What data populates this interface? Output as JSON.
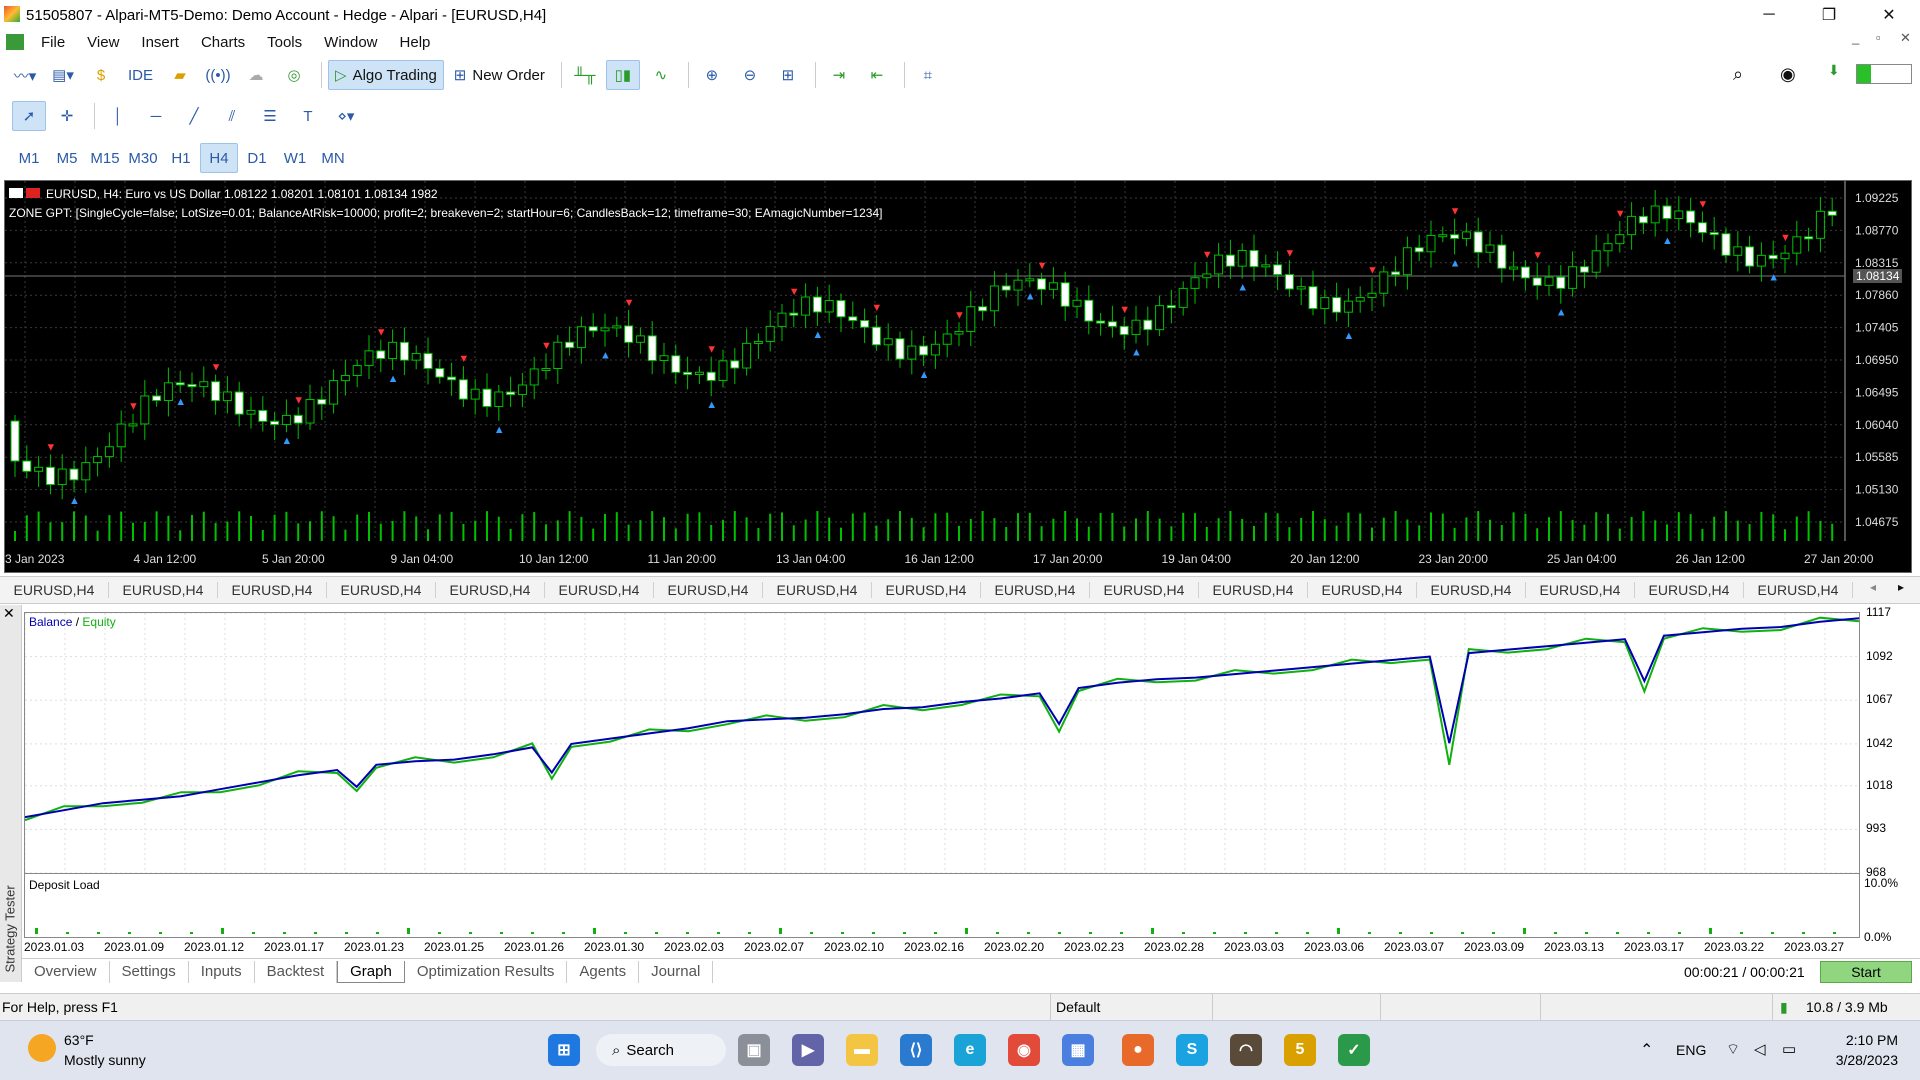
{
  "window": {
    "title": "51505807 - Alpari-MT5-Demo: Demo Account - Hedge - Alpari - [EURUSD,H4]",
    "minimize": "─",
    "restore": "❐",
    "close": "✕"
  },
  "menu": [
    "File",
    "View",
    "Insert",
    "Charts",
    "Tools",
    "Window",
    "Help"
  ],
  "toolbar": {
    "ide": "IDE",
    "algo_trading": "Algo Trading",
    "new_order": "New Order"
  },
  "timeframes": [
    "M1",
    "M5",
    "M15",
    "M30",
    "H1",
    "H4",
    "D1",
    "W1",
    "MN"
  ],
  "active_timeframe": "H4",
  "chart": {
    "header": "EURUSD, H4:  Euro vs US Dollar  1.08122 1.08201 1.08101 1.08134  1982",
    "ea_params": "ZONE GPT: [SingleCycle=false; LotSize=0.01; BalanceAtRisk=10000; profit=2; breakeven=2; startHour=6; CandlesBack=12; timeframe=30; EAmagicNumber=1234]",
    "current_price": "1.08134",
    "price_labels": [
      "1.09225",
      "1.08770",
      "1.08315",
      "1.07860",
      "1.07405",
      "1.06950",
      "1.06495",
      "1.06040",
      "1.05585",
      "1.05130",
      "1.04675"
    ],
    "time_labels": [
      "3 Jan 2023",
      "4 Jan 12:00",
      "5 Jan 20:00",
      "9 Jan 04:00",
      "10 Jan 12:00",
      "11 Jan 20:00",
      "13 Jan 04:00",
      "16 Jan 12:00",
      "17 Jan 20:00",
      "19 Jan 04:00",
      "20 Jan 12:00",
      "23 Jan 20:00",
      "25 Jan 04:00",
      "26 Jan 12:00",
      "27 Jan 20:00"
    ],
    "colors": {
      "bg": "#000000",
      "bull": "#00c000",
      "bear": "#ffffff",
      "grid": "#3a3a3a"
    }
  },
  "chart_tabs": [
    "EURUSD,H4",
    "EURUSD,H4",
    "EURUSD,H4",
    "EURUSD,H4",
    "EURUSD,H4",
    "EURUSD,H4",
    "EURUSD,H4",
    "EURUSD,H4",
    "EURUSD,H4",
    "EURUSD,H4",
    "EURUSD,H4",
    "EURUSD,H4",
    "EURUSD,H4",
    "EURUSD,H4",
    "EURUSD,H4",
    "EURUSD,H4",
    "EURUSD,H4"
  ],
  "tester": {
    "side_label": "Strategy Tester",
    "legend_balance": "Balance",
    "legend_sep": " / ",
    "legend_equity": "Equity",
    "deposit_label": "Deposit Load",
    "y_labels": [
      "1117",
      "1092",
      "1067",
      "1042",
      "1018",
      "993",
      "968"
    ],
    "load_labels": [
      "10.0%",
      "0.0%"
    ],
    "date_labels": [
      "2023.01.03",
      "2023.01.09",
      "2023.01.12",
      "2023.01.17",
      "2023.01.23",
      "2023.01.25",
      "2023.01.26",
      "2023.01.30",
      "2023.02.03",
      "2023.02.07",
      "2023.02.10",
      "2023.02.16",
      "2023.02.20",
      "2023.02.23",
      "2023.02.28",
      "2023.03.03",
      "2023.03.06",
      "2023.03.07",
      "2023.03.09",
      "2023.03.13",
      "2023.03.17",
      "2023.03.22",
      "2023.03.27"
    ],
    "tabs": [
      "Overview",
      "Settings",
      "Inputs",
      "Backtest",
      "Graph",
      "Optimization Results",
      "Agents",
      "Journal"
    ],
    "active_tab": "Graph",
    "timer": "00:00:21 / 00:00:21",
    "start": "Start"
  },
  "chart_data": [
    {
      "type": "line",
      "title": "",
      "series": [
        {
          "name": "Balance",
          "color": "#0000b0"
        },
        {
          "name": "Equity",
          "color": "#10b010"
        }
      ],
      "ylim": [
        968,
        1117
      ],
      "balance_values": [
        1000,
        1004,
        1008,
        1010,
        1012,
        1016,
        1020,
        1024,
        1027,
        1030,
        1032,
        1033,
        1036,
        1040,
        1042,
        1045,
        1048,
        1051,
        1055,
        1056,
        1057,
        1059,
        1062,
        1063,
        1066,
        1068,
        1071,
        1074,
        1077,
        1079,
        1080,
        1082,
        1084,
        1086,
        1088,
        1090,
        1092,
        1094,
        1096,
        1098,
        1100,
        1102,
        1104,
        1106,
        1108,
        1109,
        1112,
        1114
      ]
    },
    {
      "type": "bar",
      "title": "Deposit Load",
      "ylim": [
        0,
        10
      ]
    }
  ],
  "status": {
    "help": "For Help, press F1",
    "profile": "Default",
    "net": "10.8 / 3.9 Mb"
  },
  "taskbar": {
    "temp": "63°F",
    "weather": "Mostly sunny",
    "search": "Search",
    "lang": "ENG",
    "time": "2:10 PM",
    "date": "3/28/2023"
  }
}
